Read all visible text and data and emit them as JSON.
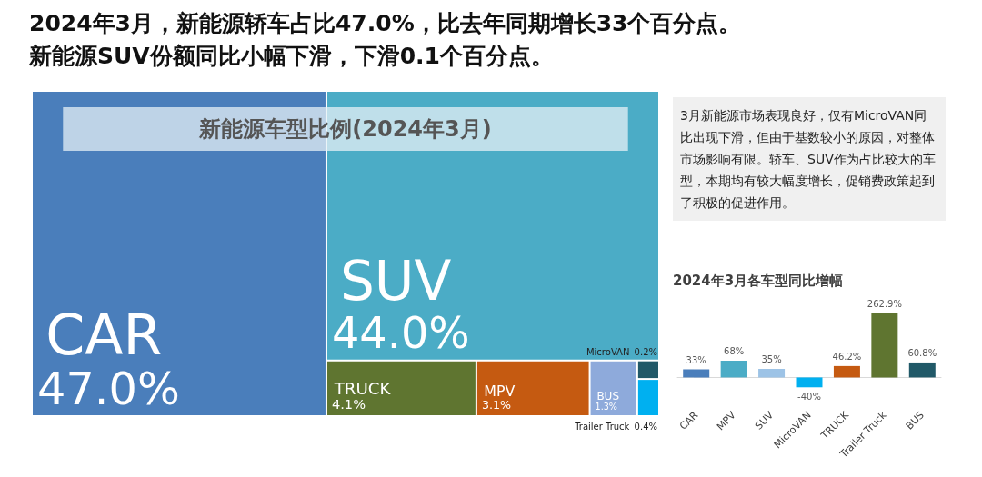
{
  "chart_data": [
    {
      "type": "other",
      "annotations": [
        "2024年3月，新能源轿车占比47.0%，比去年同期增长33个百分点。",
        "新能源SUV份额同比小幅下滑，下滑0.1个百分点。"
      ]
    },
    {
      "type": "other",
      "title": "新能源车型比例(2024年3月)",
      "categories": [
        "CAR",
        "SUV",
        "TRUCK",
        "MPV",
        "BUS",
        "Trailer Truck",
        "MicroVAN"
      ],
      "values": [
        47.0,
        44.0,
        4.1,
        3.1,
        1.3,
        0.4,
        0.2
      ],
      "value_labels": [
        "47.0%",
        "44.0%",
        "4.1%",
        "3.1%",
        "1.3%",
        "0.4%",
        "0.2%"
      ],
      "colors": [
        "#4a7ebb",
        "#4bacc6",
        "#5f7530",
        "#c55a11",
        "#8eaadb",
        "#00b0f0",
        "#215968"
      ]
    },
    {
      "type": "other",
      "annotations": [
        "3月新能源市场表现良好，仅有MicroVAN同比出现下滑，但由于基数较小的原因，对整体市场影响有限。轿车、SUV作为占比较大的车型，本期均有较大幅度增长，促销费政策起到了积极的促进作用。"
      ]
    },
    {
      "type": "bar",
      "title": "2024年3月各车型同比增幅",
      "categories": [
        "CAR",
        "MPV",
        "SUV",
        "MicroVAN",
        "TRUCK",
        "Trailer Truck",
        "BUS"
      ],
      "values": [
        33,
        68,
        35,
        -40,
        46.2,
        262.9,
        60.8
      ],
      "value_labels": [
        "33%",
        "68%",
        "35%",
        "-40%",
        "46.2%",
        "262.9%",
        "60.8%"
      ],
      "colors": [
        "#4a7ebb",
        "#4bacc6",
        "#9dc3e6",
        "#00b0f0",
        "#c55a11",
        "#5f7530",
        "#215968"
      ]
    }
  ]
}
